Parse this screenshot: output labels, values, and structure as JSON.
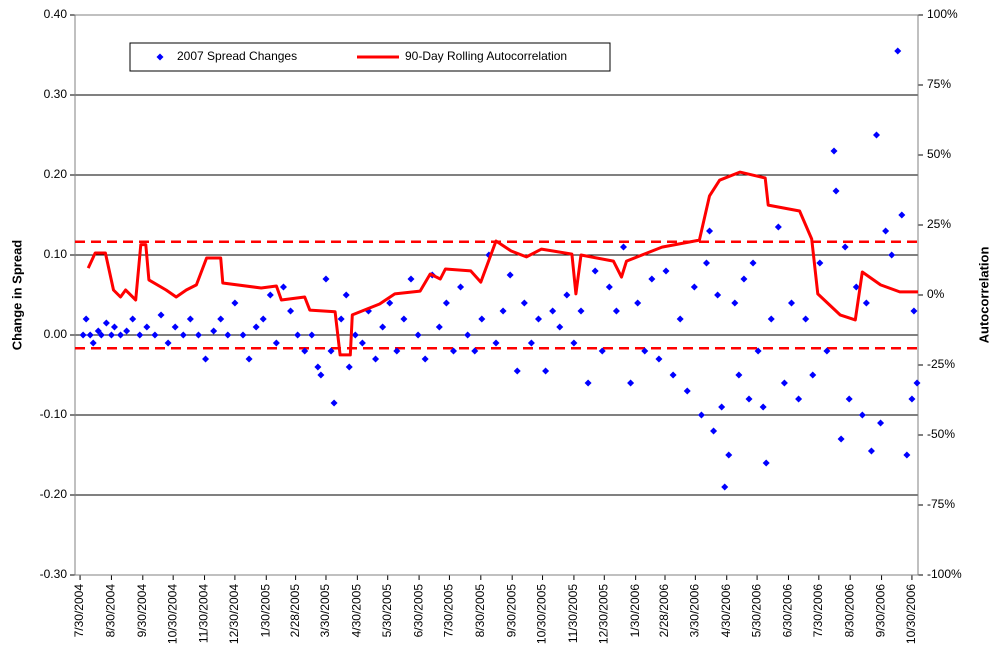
{
  "chart_data": {
    "type": "scatter-line",
    "ylabel": "Change in Spread",
    "y2label": "Autocorrelation",
    "legend": "upper left",
    "grid": true,
    "xlim": [
      "7/25/2004",
      "11/5/2006"
    ],
    "ylim": [
      -0.3,
      0.4
    ],
    "y2lim": [
      -100,
      100
    ],
    "yticks": [
      {
        "value": -0.3,
        "label": "-0.30"
      },
      {
        "value": -0.2,
        "label": "-0.20"
      },
      {
        "value": -0.1,
        "label": "-0.10"
      },
      {
        "value": 0,
        "label": "0.00"
      },
      {
        "value": 0.1,
        "label": "0.10"
      },
      {
        "value": 0.2,
        "label": "0.20"
      },
      {
        "value": 0.3,
        "label": "0.30"
      },
      {
        "value": 0.4,
        "label": "0.40"
      }
    ],
    "y2ticks": [
      {
        "value": -100,
        "label": "-100%"
      },
      {
        "value": -75,
        "label": "-75%"
      },
      {
        "value": -50,
        "label": "-50%"
      },
      {
        "value": -25,
        "label": "-25%"
      },
      {
        "value": 0,
        "label": "0%"
      },
      {
        "value": 25,
        "label": "25%"
      },
      {
        "value": 50,
        "label": "50%"
      },
      {
        "value": 75,
        "label": "75%"
      },
      {
        "value": 100,
        "label": "100%"
      }
    ],
    "xticks": [
      "7/30/2004",
      "8/30/2004",
      "9/30/2004",
      "10/30/2004",
      "11/30/2004",
      "12/30/2004",
      "1/30/2005",
      "2/28/2005",
      "3/30/2005",
      "4/30/2005",
      "5/30/2005",
      "6/30/2005",
      "7/30/2005",
      "8/30/2005",
      "9/30/2005",
      "10/30/2005",
      "11/30/2005",
      "12/30/2005",
      "1/30/2006",
      "2/28/2006",
      "3/30/2006",
      "4/30/2006",
      "5/30/2006",
      "6/30/2006",
      "7/30/2006",
      "8/30/2006",
      "9/30/2006",
      "10/30/2006"
    ],
    "reference_lines": [
      {
        "value": 19,
        "axis": "y2",
        "color": "#ff0000"
      },
      {
        "value": -19,
        "axis": "y2",
        "color": "#ff0000"
      }
    ],
    "series": [
      {
        "name": "2007 Spread Changes",
        "color": "#0000ff",
        "marker": "diamond",
        "x": [
          "8/2/2004",
          "8/5/2004",
          "8/9/2004",
          "8/12/2004",
          "8/17/2004",
          "8/20/2004",
          "8/25/2004",
          "8/30/2004",
          "9/2/2004",
          "9/8/2004",
          "9/14/2004",
          "9/20/2004",
          "9/27/2004",
          "10/4/2004",
          "10/12/2004",
          "10/18/2004",
          "10/25/2004",
          "11/1/2004",
          "11/9/2004",
          "11/16/2004",
          "11/24/2004",
          "12/1/2004",
          "12/9/2004",
          "12/16/2004",
          "12/23/2004",
          "12/30/2004",
          "1/7/2005",
          "1/13/2005",
          "1/20/2005",
          "1/27/2005",
          "2/3/2005",
          "2/9/2005",
          "2/16/2005",
          "2/23/2005",
          "3/2/2005",
          "3/9/2005",
          "3/16/2005",
          "3/22/2005",
          "3/25/2005",
          "3/30/2005",
          "4/4/2005",
          "4/7/2005",
          "4/14/2005",
          "4/19/2005",
          "4/22/2005",
          "4/28/2005",
          "5/5/2005",
          "5/11/2005",
          "5/18/2005",
          "5/25/2005",
          "6/1/2005",
          "6/8/2005",
          "6/15/2005",
          "6/22/2005",
          "6/29/2005",
          "7/6/2005",
          "7/13/2005",
          "7/20/2005",
          "7/27/2005",
          "8/3/2005",
          "8/10/2005",
          "8/17/2005",
          "8/24/2005",
          "8/31/2005",
          "9/7/2005",
          "9/14/2005",
          "9/21/2005",
          "9/28/2005",
          "10/5/2005",
          "10/12/2005",
          "10/19/2005",
          "10/26/2005",
          "11/2/2005",
          "11/9/2005",
          "11/16/2005",
          "11/23/2005",
          "11/30/2005",
          "12/7/2005",
          "12/14/2005",
          "12/21/2005",
          "12/28/2005",
          "1/4/2006",
          "1/11/2006",
          "1/18/2006",
          "1/25/2006",
          "2/1/2006",
          "2/8/2006",
          "2/15/2006",
          "2/22/2006",
          "3/1/2006",
          "3/8/2006",
          "3/15/2006",
          "3/22/2006",
          "3/29/2006",
          "4/5/2006",
          "4/10/2006",
          "4/13/2006",
          "4/17/2006",
          "4/21/2006",
          "4/25/2006",
          "4/28/2006",
          "5/2/2006",
          "5/8/2006",
          "5/12/2006",
          "5/17/2006",
          "5/22/2006",
          "5/26/2006",
          "5/31/2006",
          "6/5/2006",
          "6/8/2006",
          "6/13/2006",
          "6/20/2006",
          "6/26/2006",
          "7/3/2006",
          "7/10/2006",
          "7/17/2006",
          "7/24/2006",
          "7/31/2006",
          "8/7/2006",
          "8/14/2006",
          "8/16/2006",
          "8/21/2006",
          "8/25/2006",
          "8/29/2006",
          "9/5/2006",
          "9/11/2006",
          "9/15/2006",
          "9/20/2006",
          "9/25/2006",
          "9/29/2006",
          "10/4/2006",
          "10/10/2006",
          "10/16/2006",
          "10/20/2006",
          "10/25/2006",
          "10/30/2006",
          "11/1/2006",
          "11/4/2006"
        ],
        "values": [
          0,
          0.02,
          0,
          -0.01,
          0.005,
          0,
          0.015,
          0,
          0.01,
          0,
          0.005,
          0.02,
          0,
          0.01,
          0,
          0.025,
          -0.01,
          0.01,
          0,
          0.02,
          0,
          -0.03,
          0.005,
          0.02,
          0,
          0.04,
          0,
          -0.03,
          0.01,
          0.02,
          0.05,
          -0.01,
          0.06,
          0.03,
          0,
          -0.02,
          0,
          -0.04,
          -0.05,
          0.07,
          -0.02,
          -0.085,
          0.02,
          0.05,
          -0.04,
          0,
          -0.01,
          0.03,
          -0.03,
          0.01,
          0.04,
          -0.02,
          0.02,
          0.07,
          0,
          -0.03,
          0.075,
          0.01,
          0.04,
          -0.02,
          0.06,
          0,
          -0.02,
          0.02,
          0.1,
          -0.01,
          0.03,
          0.075,
          -0.045,
          0.04,
          -0.01,
          0.02,
          -0.045,
          0.03,
          0.01,
          0.05,
          -0.01,
          0.03,
          -0.06,
          0.08,
          -0.02,
          0.06,
          0.03,
          0.11,
          -0.06,
          0.04,
          -0.02,
          0.07,
          -0.03,
          0.08,
          -0.05,
          0.02,
          -0.07,
          0.06,
          -0.1,
          0.09,
          0.13,
          -0.12,
          0.05,
          -0.09,
          -0.19,
          -0.15,
          0.04,
          -0.05,
          0.07,
          -0.08,
          0.09,
          -0.02,
          -0.09,
          -0.16,
          0.02,
          0.135,
          -0.06,
          0.04,
          -0.08,
          0.02,
          -0.05,
          0.09,
          -0.02,
          0.23,
          0.18,
          -0.13,
          0.11,
          -0.08,
          0.06,
          -0.1,
          0.04,
          -0.145,
          0.25,
          -0.11,
          0.13,
          0.1,
          0.355,
          0.15,
          -0.15,
          -0.08,
          0.03,
          -0.06
        ]
      },
      {
        "name": "90-Day Rolling Autocorrelation",
        "color": "#ff0000",
        "axis": "y2",
        "x": [
          "8/7/2004",
          "8/14/2004",
          "8/24/2004",
          "9/1/2004",
          "9/8/2004",
          "9/13/2004",
          "9/23/2004",
          "9/28/2004",
          "10/3/2004",
          "10/6/2004",
          "10/23/2004",
          "11/2/2004",
          "11/12/2004",
          "11/22/2004",
          "12/2/2004",
          "12/16/2004",
          "12/18/2004",
          "1/25/2005",
          "2/9/2005",
          "2/14/2005",
          "3/9/2005",
          "3/14/2005",
          "4/8/2005",
          "4/13/2005",
          "4/23/2005",
          "4/25/2005",
          "5/22/2005",
          "6/6/2005",
          "7/1/2005",
          "7/11/2005",
          "7/21/2005",
          "7/26/2005",
          "8/20/2005",
          "8/30/2005",
          "9/14/2005",
          "9/29/2005",
          "10/14/2005",
          "10/29/2005",
          "11/28/2005",
          "12/2/2005",
          "12/7/2005",
          "1/8/2006",
          "1/16/2006",
          "1/21/2006",
          "2/25/2006",
          "4/3/2006",
          "4/13/2006",
          "4/23/2006",
          "5/13/2006",
          "6/7/2006",
          "6/10/2006",
          "7/11/2006",
          "7/23/2006",
          "7/29/2006",
          "8/20/2006",
          "9/4/2006",
          "9/11/2006",
          "9/29/2006",
          "10/18/2006",
          "11/5/2006"
        ],
        "values": [
          9.6,
          15,
          15,
          1.8,
          -0.7,
          1.8,
          -1.8,
          18,
          18,
          5.4,
          1.8,
          -0.7,
          1.8,
          3.6,
          13.2,
          13.2,
          4.3,
          2.5,
          3.2,
          -1.8,
          -0.7,
          -5.4,
          -6,
          -21.4,
          -21.4,
          -7.1,
          -3.2,
          0.4,
          1.4,
          7.5,
          5.7,
          9.3,
          8.6,
          4.6,
          19.3,
          15.7,
          13.6,
          16.4,
          14.6,
          0.4,
          14.3,
          12.1,
          6.4,
          12.1,
          17.1,
          19.6,
          35.4,
          41,
          43.9,
          41.8,
          32.1,
          30,
          20,
          0.4,
          -7.1,
          -8.9,
          8.2,
          3.6,
          1.1,
          1.1
        ]
      }
    ]
  }
}
